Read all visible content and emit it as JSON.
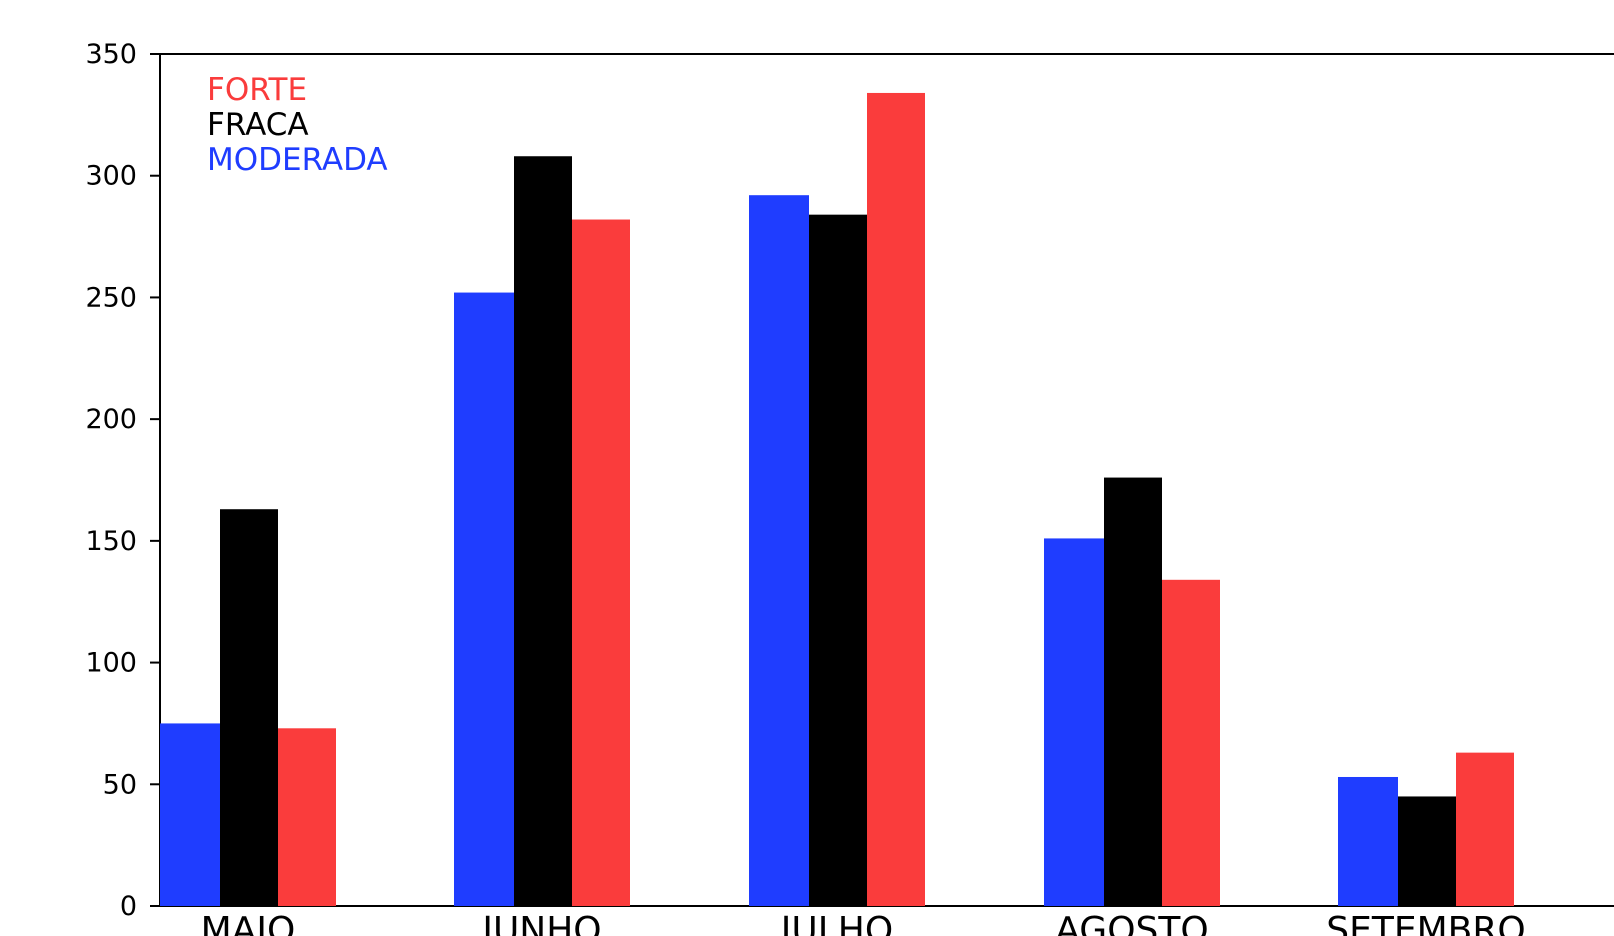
{
  "chart_data": {
    "type": "bar",
    "title": "",
    "xlabel": "",
    "ylabel": "",
    "categories": [
      "MAIO",
      "JUNHO",
      "JULHO",
      "AGOSTO",
      "SETEMBRO"
    ],
    "ylim": [
      0,
      350
    ],
    "yticks": [
      0,
      50,
      100,
      150,
      200,
      250,
      300,
      350
    ],
    "grid": false,
    "legend_position": "top-left",
    "legend_order": [
      "FORTE",
      "FRACA",
      "MODERADA"
    ],
    "series": [
      {
        "name": "MODERADA",
        "color": "#1f3dff",
        "values": [
          75,
          252,
          292,
          151,
          53
        ]
      },
      {
        "name": "FRACA",
        "color": "#000000",
        "values": [
          163,
          308,
          284,
          176,
          45
        ]
      },
      {
        "name": "FORTE",
        "color": "#fa3c3c",
        "values": [
          73,
          282,
          334,
          134,
          63
        ]
      }
    ]
  }
}
